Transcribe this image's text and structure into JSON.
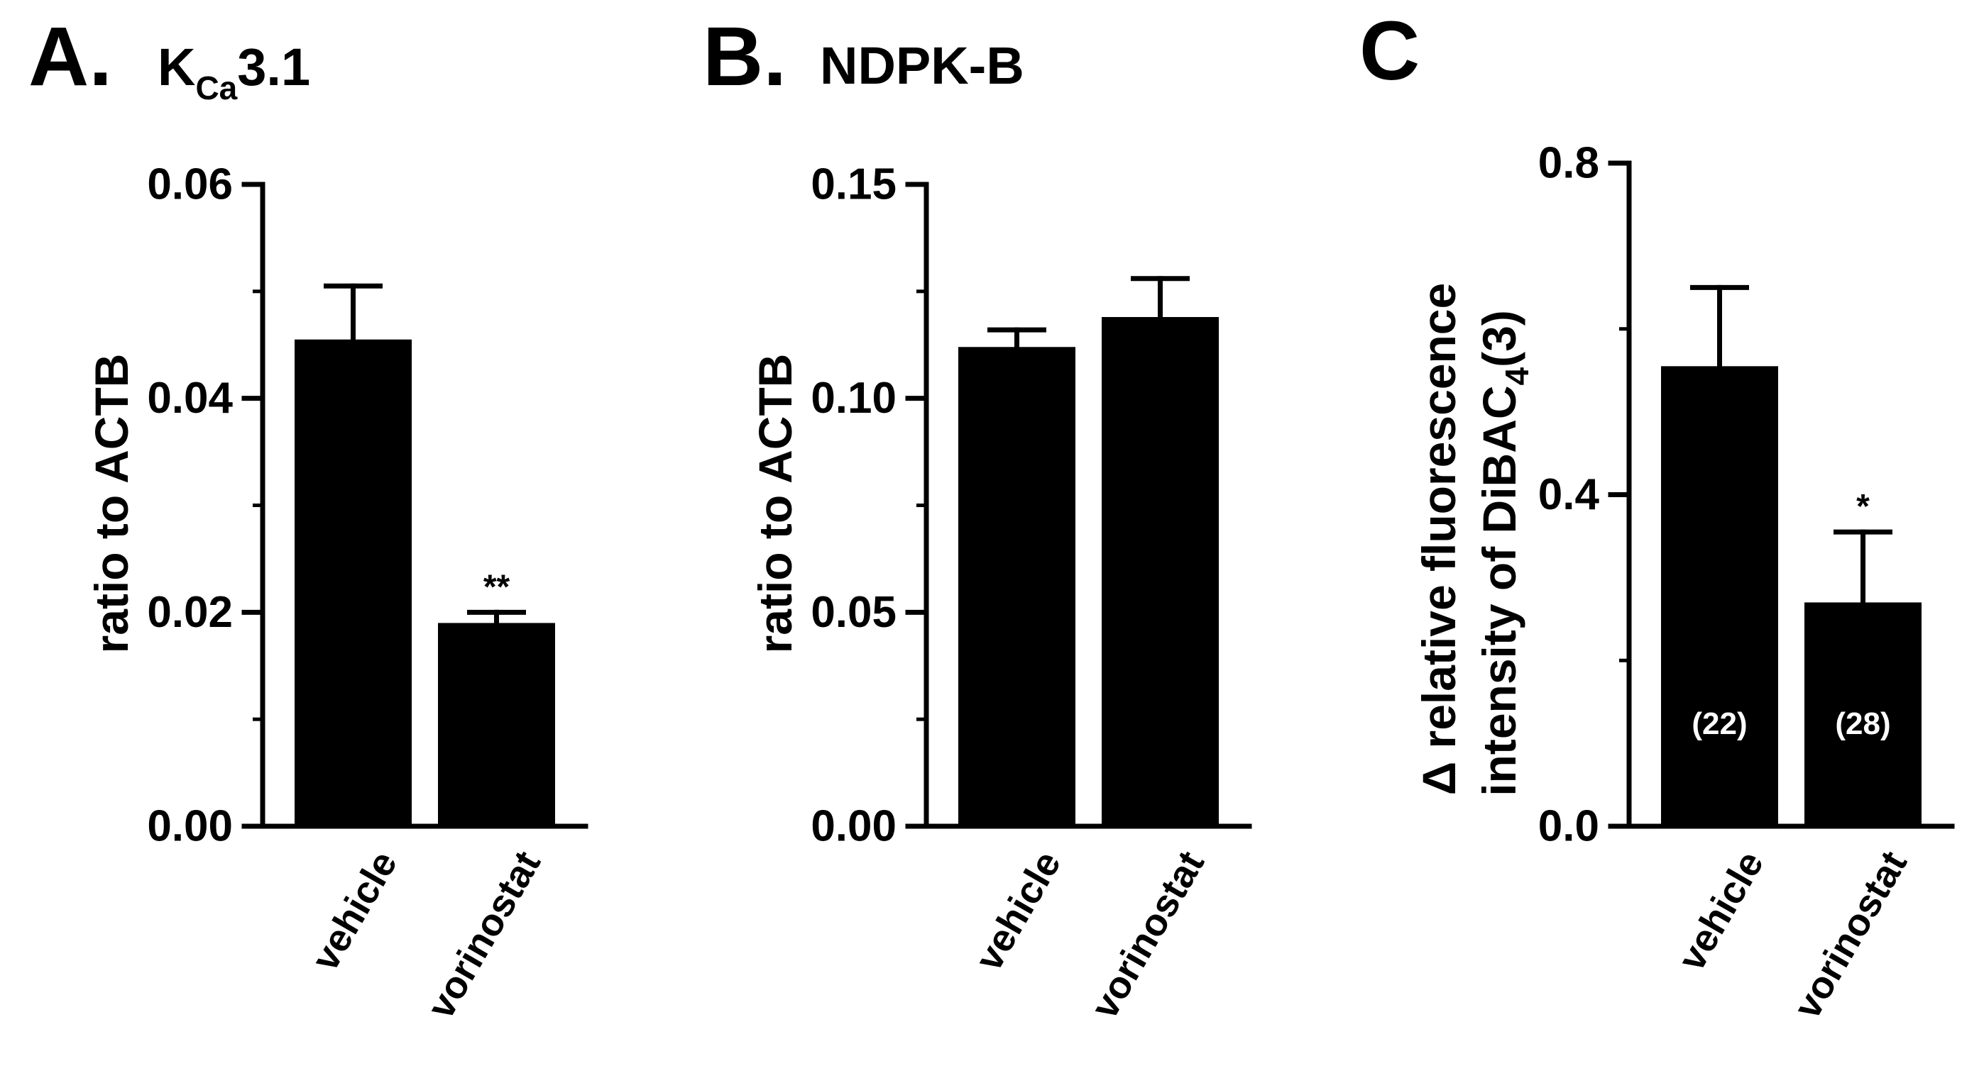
{
  "figure": {
    "background": "#ffffff",
    "bar_color": "#000000",
    "n_label_color": "#ffffff"
  },
  "panels": [
    {
      "letter": "A.",
      "title_main": "K",
      "title_sub": "Ca",
      "title_rest": "3.1"
    },
    {
      "letter": "B.",
      "title_main": "NDPK-B",
      "title_sub": "",
      "title_rest": ""
    },
    {
      "letter": "C",
      "title_main": "",
      "title_sub": "",
      "title_rest": ""
    }
  ],
  "chart_data": [
    {
      "type": "bar",
      "title": "KCa3.1",
      "categories": [
        "vehicle",
        "vorinostat"
      ],
      "values": [
        0.0455,
        0.019
      ],
      "errors": [
        0.005,
        0.001
      ],
      "significance": [
        "",
        "**"
      ],
      "ylabel": "ratio to ACTB",
      "ylim": [
        0,
        0.06
      ],
      "yticks": [
        "0.00",
        "0.02",
        "0.04",
        "0.06"
      ],
      "yticks_values": [
        0,
        0.02,
        0.04,
        0.06
      ],
      "minor_ticks": [
        0.01,
        0.03,
        0.05
      ],
      "grid": false
    },
    {
      "type": "bar",
      "title": "NDPK-B",
      "categories": [
        "vehicle",
        "vorinostat"
      ],
      "values": [
        0.112,
        0.119
      ],
      "errors": [
        0.004,
        0.009
      ],
      "significance": [
        "",
        ""
      ],
      "ylabel": "ratio to ACTB",
      "ylim": [
        0,
        0.15
      ],
      "yticks": [
        "0.00",
        "0.05",
        "0.10",
        "0.15"
      ],
      "yticks_values": [
        0,
        0.05,
        0.1,
        0.15
      ],
      "minor_ticks": [
        0.025,
        0.075,
        0.125
      ],
      "grid": false
    },
    {
      "type": "bar",
      "title": "",
      "categories": [
        "vehicle",
        "vorinostat"
      ],
      "values": [
        0.555,
        0.27
      ],
      "errors": [
        0.095,
        0.085
      ],
      "significance": [
        "",
        "*"
      ],
      "n_labels": [
        "(22)",
        "(28)"
      ],
      "ylabel_line1": "Δ relative fluorescence",
      "ylabel_line2_main": "intensity of DiBAC",
      "ylabel_line2_sub": "4",
      "ylabel_line2_rest": "(3)",
      "ylim": [
        0,
        0.8
      ],
      "yticks": [
        "0.0",
        "0.4",
        "0.8"
      ],
      "yticks_values": [
        0,
        0.4,
        0.8
      ],
      "minor_ticks": [
        0.2,
        0.6
      ],
      "grid": false
    }
  ]
}
